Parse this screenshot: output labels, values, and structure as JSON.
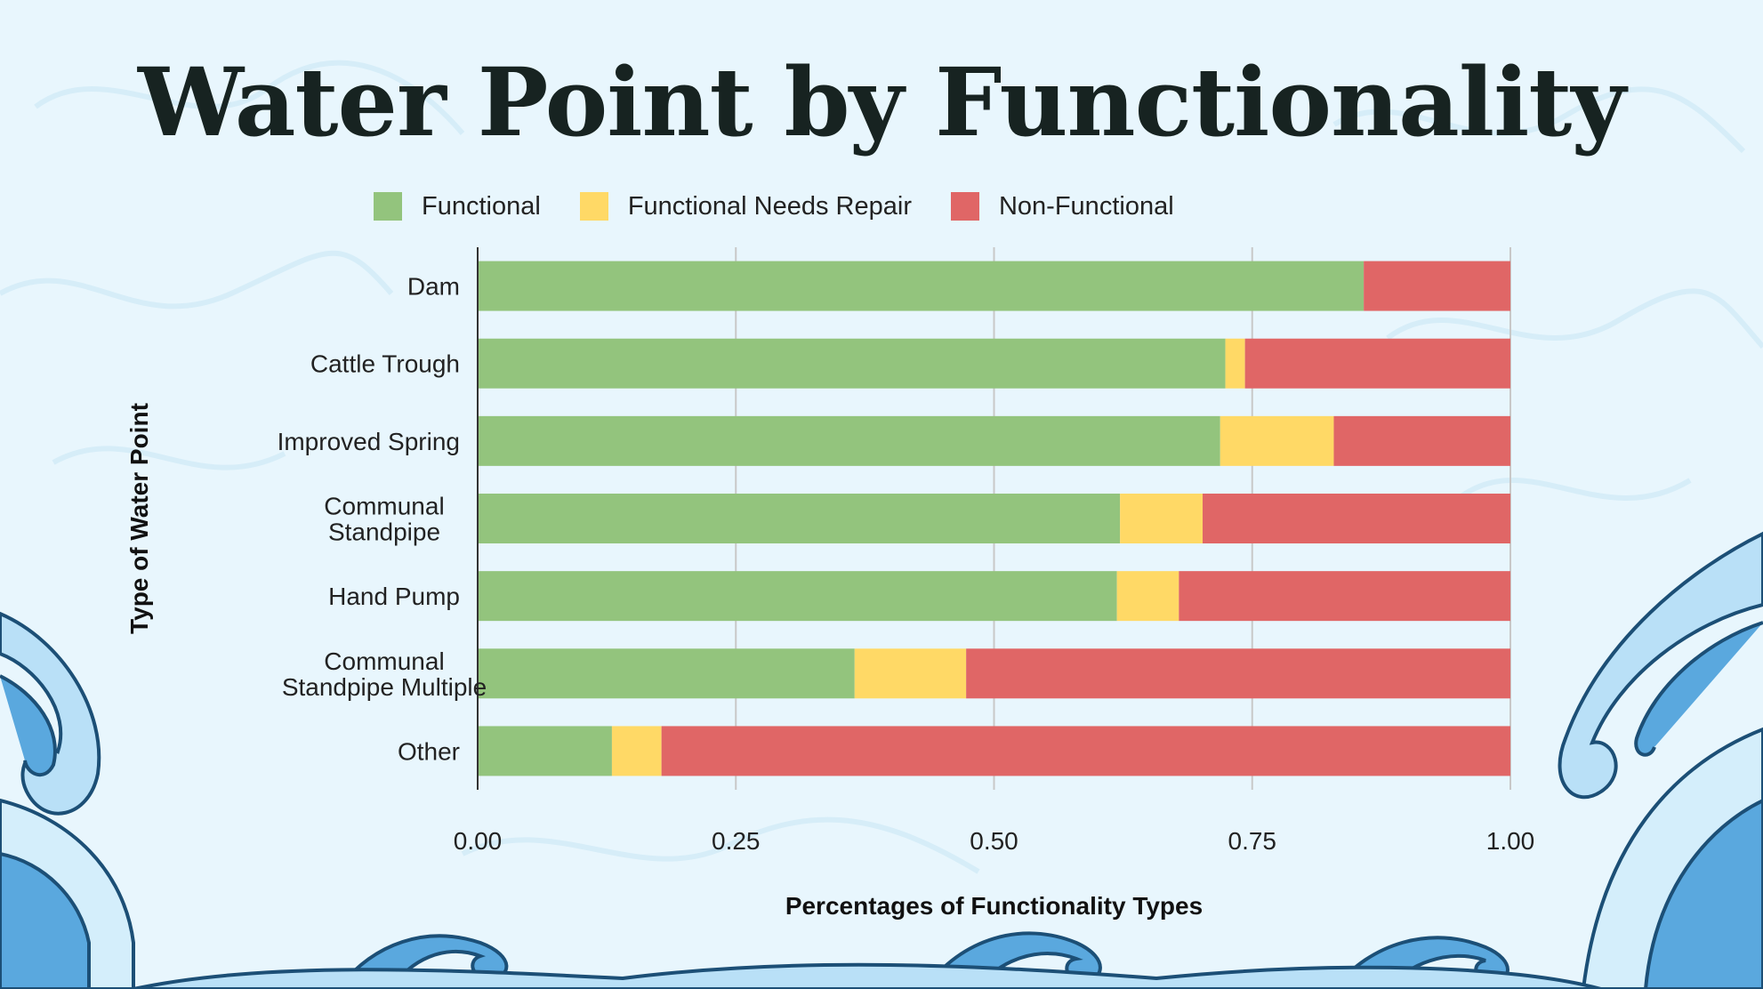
{
  "page": {
    "title": "Water Point by Functionality"
  },
  "colors": {
    "functional": "#93c47d",
    "needs_repair": "#ffd966",
    "non_functional": "#e06666",
    "background": "#e8f6fd",
    "wave_dark": "#1c4f76",
    "wave_mid": "#5aa8de",
    "wave_light": "#b9e0f7"
  },
  "legend": {
    "items": [
      {
        "label": "Functional",
        "color": "#93c47d"
      },
      {
        "label": "Functional Needs Repair",
        "color": "#ffd966"
      },
      {
        "label": "Non-Functional",
        "color": "#e06666"
      }
    ]
  },
  "chart_data": {
    "type": "bar",
    "orientation": "horizontal",
    "stacked": true,
    "title": "Water Point by Functionality",
    "xlabel": "Percentages of Functionality Types",
    "ylabel": "Type of Water Point",
    "xlim": [
      0,
      1
    ],
    "xticks": [
      "0.00",
      "0.25",
      "0.50",
      "0.75",
      "1.00"
    ],
    "grid": true,
    "legend_position": "top",
    "categories": [
      "Dam",
      "Cattle Trough",
      "Improved Spring",
      "Communal Standpipe",
      "Hand Pump",
      "Communal Standpipe Multiple",
      "Other"
    ],
    "series": [
      {
        "name": "Functional",
        "color": "#93c47d",
        "values": [
          0.858,
          0.724,
          0.719,
          0.622,
          0.619,
          0.365,
          0.13
        ]
      },
      {
        "name": "Functional Needs Repair",
        "color": "#ffd966",
        "values": [
          0.0,
          0.019,
          0.11,
          0.08,
          0.06,
          0.108,
          0.048
        ]
      },
      {
        "name": "Non-Functional",
        "color": "#e06666",
        "values": [
          0.142,
          0.257,
          0.171,
          0.298,
          0.321,
          0.527,
          0.822
        ]
      }
    ]
  }
}
